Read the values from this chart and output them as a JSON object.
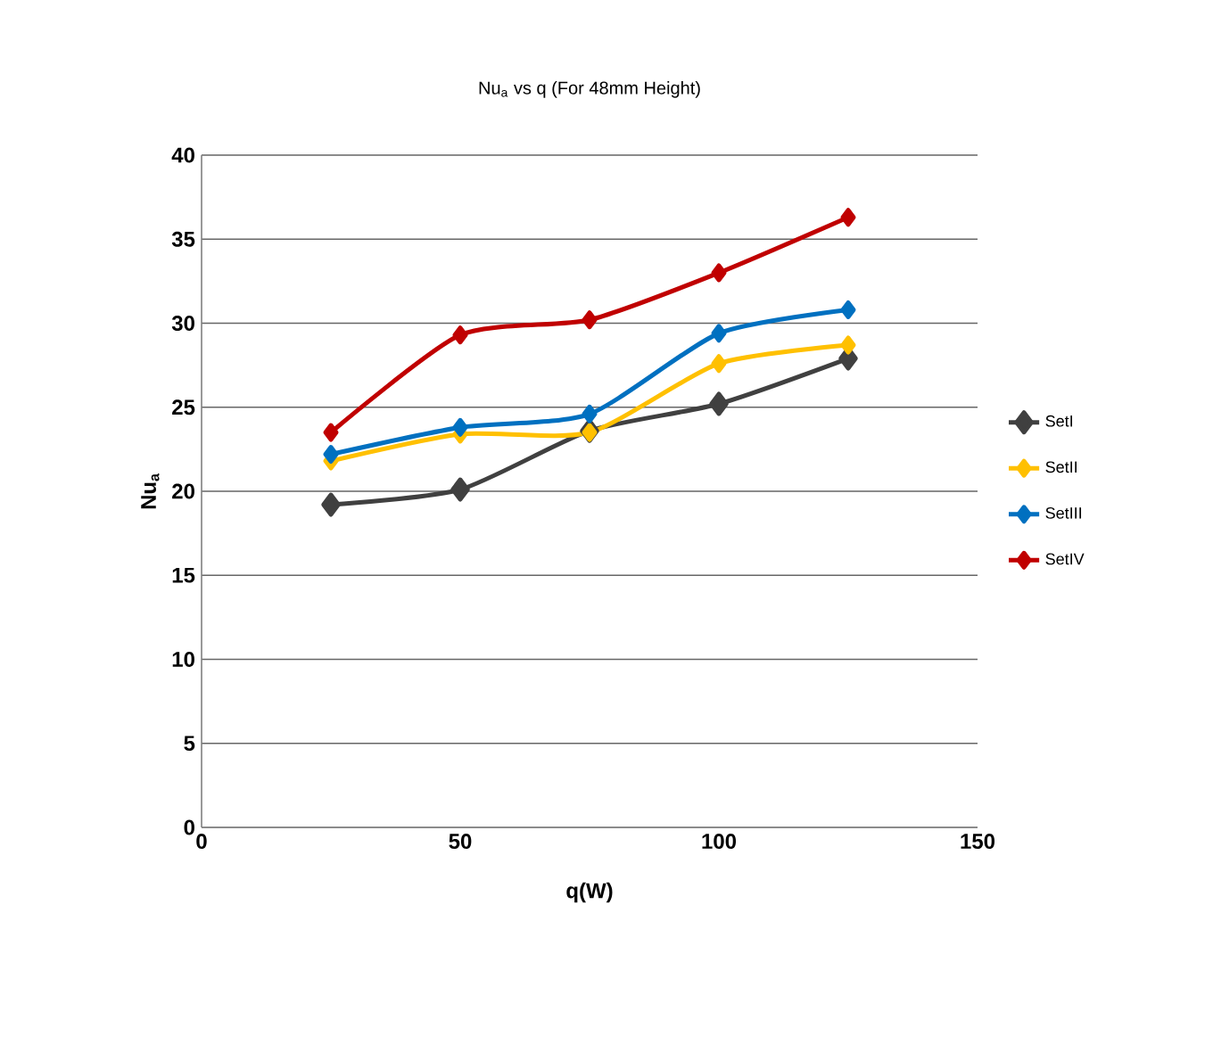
{
  "chart_data": {
    "type": "line",
    "title": "Nu$_{a}$ vs q (For 48mm Height)",
    "xlabel": "q(W)",
    "ylabel": "Nu$_{a}$",
    "x": [
      25,
      50,
      75,
      100,
      125
    ],
    "series": [
      {
        "name": "SetI",
        "color": "#404040",
        "values": [
          19.2,
          20.1,
          23.6,
          25.2,
          27.9
        ]
      },
      {
        "name": "SetII",
        "color": "#ffc000",
        "values": [
          21.8,
          23.4,
          23.5,
          27.6,
          28.7
        ]
      },
      {
        "name": "SetIII",
        "color": "#0070c0",
        "values": [
          22.2,
          23.8,
          24.6,
          29.4,
          30.8
        ]
      },
      {
        "name": "SetIV",
        "color": "#c00000",
        "values": [
          23.5,
          29.3,
          30.2,
          33.0,
          36.3
        ]
      }
    ],
    "xlim": [
      0,
      150
    ],
    "xticks": [
      0,
      50,
      100,
      150
    ],
    "ylim": [
      0,
      40
    ],
    "yticks": [
      0,
      5,
      10,
      15,
      20,
      25,
      30,
      35,
      40
    ],
    "grid": "y",
    "legend": "right",
    "marker": "diamond",
    "line_style": "solid"
  }
}
